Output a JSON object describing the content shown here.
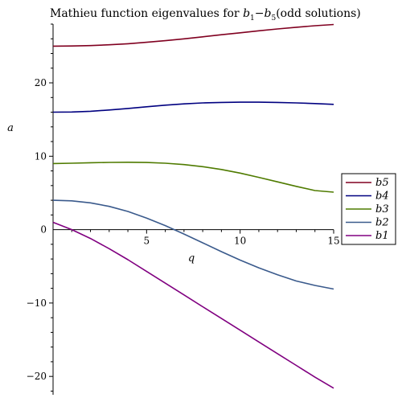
{
  "chart_data": {
    "type": "line",
    "title": {
      "prefix": "Mathieu function eigenvalues for ",
      "var1": "b",
      "sub1": "1",
      "dash": "−",
      "var2": "b",
      "sub2": "5",
      "suffix": "(odd  solutions)"
    },
    "xlabel": "q",
    "ylabel": "a",
    "xlim": [
      0,
      15
    ],
    "ylim": [
      -22.5,
      28
    ],
    "x_ticks": [
      5,
      10,
      15
    ],
    "x_tick_labels": [
      "5",
      "10",
      "15"
    ],
    "y_ticks": [
      20,
      10,
      0,
      -10,
      -20
    ],
    "y_tick_labels": [
      "20",
      "10",
      "0",
      "−10",
      "−20"
    ],
    "grid": false,
    "legend_position": "right",
    "series": [
      {
        "name": "b5",
        "color": "#800020",
        "x": [
          0,
          1,
          2,
          3,
          4,
          5,
          6,
          7,
          8,
          9,
          10,
          11,
          12,
          13,
          14,
          15
        ],
        "y": [
          25.0,
          25.02,
          25.08,
          25.19,
          25.33,
          25.52,
          25.74,
          25.99,
          26.27,
          26.55,
          26.82,
          27.09,
          27.34,
          27.57,
          27.78,
          27.95
        ]
      },
      {
        "name": "b4",
        "color": "#000080",
        "x": [
          0,
          1,
          2,
          3,
          4,
          5,
          6,
          7,
          8,
          9,
          10,
          11,
          12,
          13,
          14,
          15
        ],
        "y": [
          16.0,
          16.03,
          16.13,
          16.3,
          16.51,
          16.74,
          16.96,
          17.13,
          17.26,
          17.33,
          17.36,
          17.36,
          17.33,
          17.27,
          17.18,
          17.07
        ]
      },
      {
        "name": "b3",
        "color": "#4f7b00",
        "x": [
          0,
          1,
          2,
          3,
          4,
          5,
          6,
          7,
          8,
          9,
          10,
          11,
          12,
          13,
          14,
          15
        ],
        "y": [
          9.0,
          9.05,
          9.11,
          9.16,
          9.18,
          9.15,
          9.05,
          8.86,
          8.58,
          8.19,
          7.7,
          7.12,
          6.51,
          5.89,
          5.32,
          5.1
        ]
      },
      {
        "name": "b2",
        "color": "#3a5a8c",
        "x": [
          0,
          1,
          2,
          3,
          4,
          5,
          6,
          7,
          8,
          9,
          10,
          11,
          12,
          13,
          14,
          15
        ],
        "y": [
          4.0,
          3.92,
          3.65,
          3.17,
          2.48,
          1.58,
          0.55,
          -0.6,
          -1.8,
          -3.0,
          -4.15,
          -5.2,
          -6.15,
          -7.0,
          -7.6,
          -8.1
        ]
      },
      {
        "name": "b1",
        "color": "#800080",
        "x": [
          0,
          1,
          2,
          3,
          4,
          5,
          6,
          7,
          8,
          9,
          10,
          11,
          12,
          13,
          14,
          15
        ],
        "y": [
          1.0,
          0.0,
          -1.2,
          -2.6,
          -4.1,
          -5.7,
          -7.3,
          -8.9,
          -10.5,
          -12.1,
          -13.7,
          -15.3,
          -16.9,
          -18.5,
          -20.1,
          -21.6
        ]
      }
    ]
  }
}
